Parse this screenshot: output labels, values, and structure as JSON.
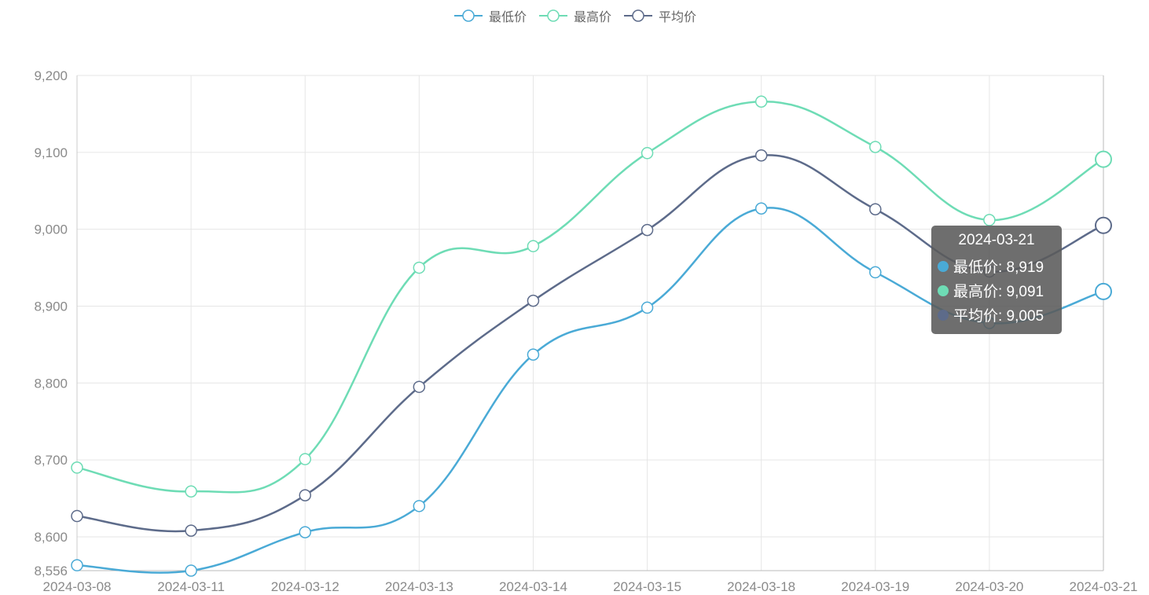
{
  "chart_data": {
    "type": "line",
    "categories": [
      "2024-03-08",
      "2024-03-11",
      "2024-03-12",
      "2024-03-13",
      "2024-03-14",
      "2024-03-15",
      "2024-03-18",
      "2024-03-19",
      "2024-03-20",
      "2024-03-21"
    ],
    "series": [
      {
        "name": "最低价",
        "color": "#4aaad6",
        "values": [
          8563,
          8556,
          8606,
          8640,
          8837,
          8898,
          9027,
          8944,
          8878,
          8919
        ]
      },
      {
        "name": "最高价",
        "color": "#6edcb5",
        "values": [
          8690,
          8659,
          8701,
          8950,
          8978,
          9099,
          9166,
          9107,
          9012,
          9091
        ]
      },
      {
        "name": "平均价",
        "color": "#5d6b8a",
        "values": [
          8627,
          8608,
          8654,
          8795,
          8907,
          8999,
          9096,
          9026,
          8945,
          9005
        ]
      }
    ],
    "y_ticks": [
      "8,556",
      "8,600",
      "8,700",
      "8,800",
      "8,900",
      "9,000",
      "9,100",
      "9,200"
    ],
    "ylim": [
      8556,
      9200
    ],
    "grid": true,
    "legend_position": "top-center",
    "highlighted_category": "2024-03-21"
  },
  "tooltip": {
    "title": "2024-03-21",
    "rows": [
      {
        "label": "最低价: 8,919",
        "color": "#4aaad6"
      },
      {
        "label": "最高价: 9,091",
        "color": "#6edcb5"
      },
      {
        "label": "平均价: 9,005",
        "color": "#5d6b8a"
      }
    ]
  }
}
